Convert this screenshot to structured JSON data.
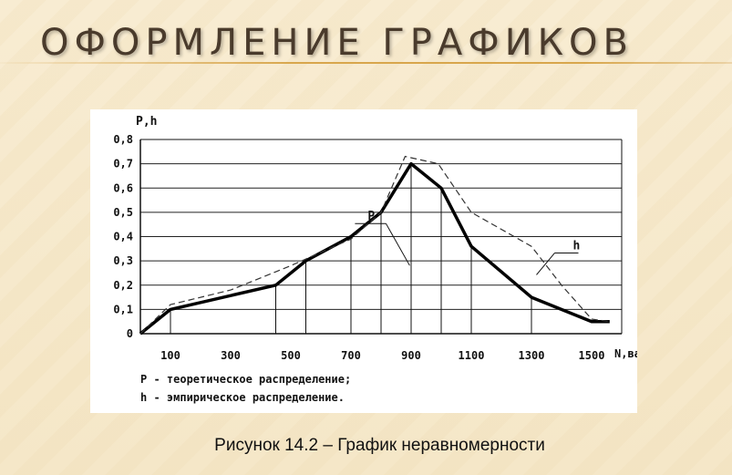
{
  "slide": {
    "title": "ОФОРМЛЕНИЕ ГРАФИКОВ",
    "caption": "Рисунок 14.2 – График неравномерности"
  },
  "colors": {
    "title": "#4a3b2c",
    "rule": "#d8a64c",
    "background": "#f6e9cb"
  },
  "chart_data": {
    "type": "line",
    "xlabel": "N,вaz",
    "ylabel": "P,h",
    "xlim": [
      0,
      1600
    ],
    "ylim": [
      0,
      0.8
    ],
    "grid": "horizontal",
    "x_ticks": [
      "100",
      "300",
      "500",
      "700",
      "900",
      "1100",
      "1300",
      "1500"
    ],
    "x_tick_values": [
      100,
      300,
      500,
      700,
      900,
      1100,
      1300,
      1500
    ],
    "y_ticks": [
      "0",
      "0,1",
      "0,2",
      "0,3",
      "0,4",
      "0,5",
      "0,6",
      "0,7",
      "0,8"
    ],
    "y_tick_values": [
      0,
      0.1,
      0.2,
      0.3,
      0.4,
      0.5,
      0.6,
      0.7,
      0.8
    ],
    "series": [
      {
        "name": "h",
        "style": "thick-solid",
        "x": [
          0,
          100,
          450,
          550,
          700,
          800,
          900,
          1000,
          1100,
          1300,
          1500,
          1560
        ],
        "y": [
          0.0,
          0.1,
          0.2,
          0.3,
          0.4,
          0.5,
          0.7,
          0.6,
          0.36,
          0.15,
          0.05,
          0.05
        ]
      },
      {
        "name": "P",
        "style": "dashed",
        "x": [
          0,
          100,
          300,
          500,
          700,
          800,
          880,
          990,
          1100,
          1300,
          1400,
          1500,
          1560
        ],
        "y": [
          0.0,
          0.12,
          0.18,
          0.28,
          0.39,
          0.5,
          0.73,
          0.7,
          0.5,
          0.36,
          0.2,
          0.06,
          0.05
        ]
      }
    ],
    "annotations": [
      {
        "text": "P",
        "x": 780,
        "y": 0.45
      },
      {
        "text": "h",
        "x": 1450,
        "y": 0.34
      }
    ],
    "legend": [
      "P - теоретическое распределение;",
      "h - эмпирическое распределение."
    ],
    "legend_placement": "bottom-left"
  }
}
